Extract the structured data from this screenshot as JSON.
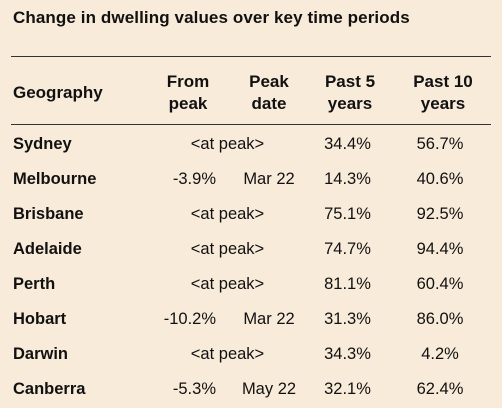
{
  "title": "Change in dwelling values over key time periods",
  "headers": {
    "geography": "Geography",
    "from_peak": [
      "From",
      "peak"
    ],
    "peak_date": [
      "Peak",
      "date"
    ],
    "past5": [
      "Past 5",
      "years"
    ],
    "past10": [
      "Past 10",
      "years"
    ]
  },
  "rows": [
    {
      "geography": "Sydney",
      "peak": "<at peak>",
      "past5": "34.4%",
      "past10": "56.7%"
    },
    {
      "geography": "Melbourne",
      "from_peak": "-3.9%",
      "peak_date": "Mar 22",
      "past5": "14.3%",
      "past10": "40.6%"
    },
    {
      "geography": "Brisbane",
      "peak": "<at peak>",
      "past5": "75.1%",
      "past10": "92.5%"
    },
    {
      "geography": "Adelaide",
      "peak": "<at peak>",
      "past5": "74.7%",
      "past10": "94.4%"
    },
    {
      "geography": "Perth",
      "peak": "<at peak>",
      "past5": "81.1%",
      "past10": "60.4%"
    },
    {
      "geography": "Hobart",
      "from_peak": "-10.2%",
      "peak_date": "Mar 22",
      "past5": "31.3%",
      "past10": "86.0%"
    },
    {
      "geography": "Darwin",
      "peak": "<at peak>",
      "past5": "34.3%",
      "past10": "4.2%"
    },
    {
      "geography": "Canberra",
      "from_peak": "-5.3%",
      "peak_date": "May 22",
      "past5": "32.1%",
      "past10": "62.4%"
    }
  ]
}
